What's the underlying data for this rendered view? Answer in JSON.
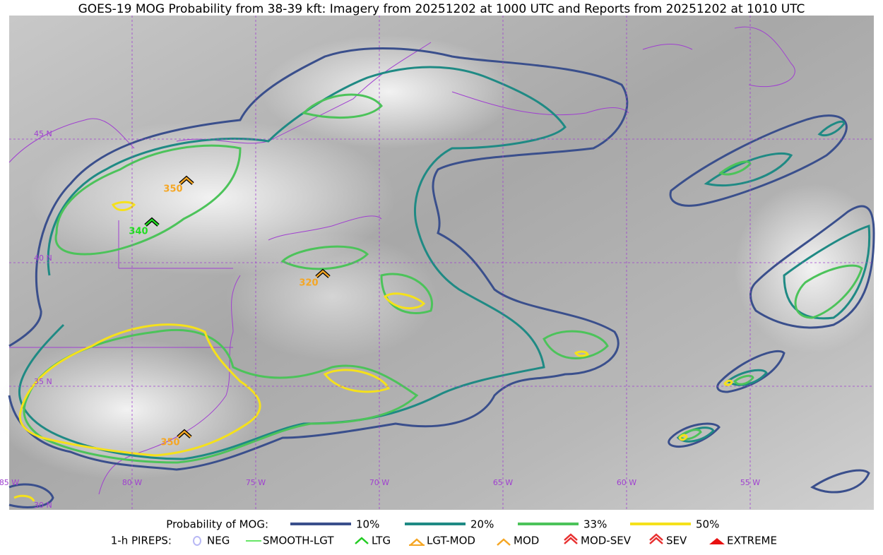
{
  "title": "GOES-19 MOG Probability from 38-39 kft: Imagery from 20251202 at 1000 UTC and Reports from 20251202 at 1010 UTC",
  "map": {
    "lat_labels": [
      "45 N",
      "40 N",
      "35 N",
      "30 N"
    ],
    "lon_labels": [
      "85 W",
      "80 W",
      "75 W",
      "70 W",
      "65 W",
      "60 W",
      "55 W"
    ],
    "pirep_labels": [
      {
        "text": "350",
        "color": "#f5a623"
      },
      {
        "text": "340",
        "color": "#22dd22"
      },
      {
        "text": "320",
        "color": "#f5a623"
      },
      {
        "text": "350",
        "color": "#f5a623"
      }
    ]
  },
  "legend": {
    "mog_title": "Probability of MOG:",
    "mog_items": [
      {
        "label": "10%",
        "color": "#3a4f8c"
      },
      {
        "label": "20%",
        "color": "#1f8a84"
      },
      {
        "label": "33%",
        "color": "#4cc35a"
      },
      {
        "label": "50%",
        "color": "#f5e11b"
      }
    ],
    "pirep_title": "1-h PIREPS:",
    "pirep_items": [
      {
        "label": "NEG",
        "color": "#b9b9f5"
      },
      {
        "label": "SMOOTH-LGT",
        "color": "#33dd33"
      },
      {
        "label": "LTG",
        "color": "#22cc22"
      },
      {
        "label": "LGT-MOD",
        "color": "#f5a623"
      },
      {
        "label": "MOD",
        "color": "#f5a623"
      },
      {
        "label": "MOD-SEV",
        "color": "#e83030"
      },
      {
        "label": "SEV",
        "color": "#e83030"
      },
      {
        "label": "EXTREME",
        "color": "#e81010"
      }
    ]
  }
}
